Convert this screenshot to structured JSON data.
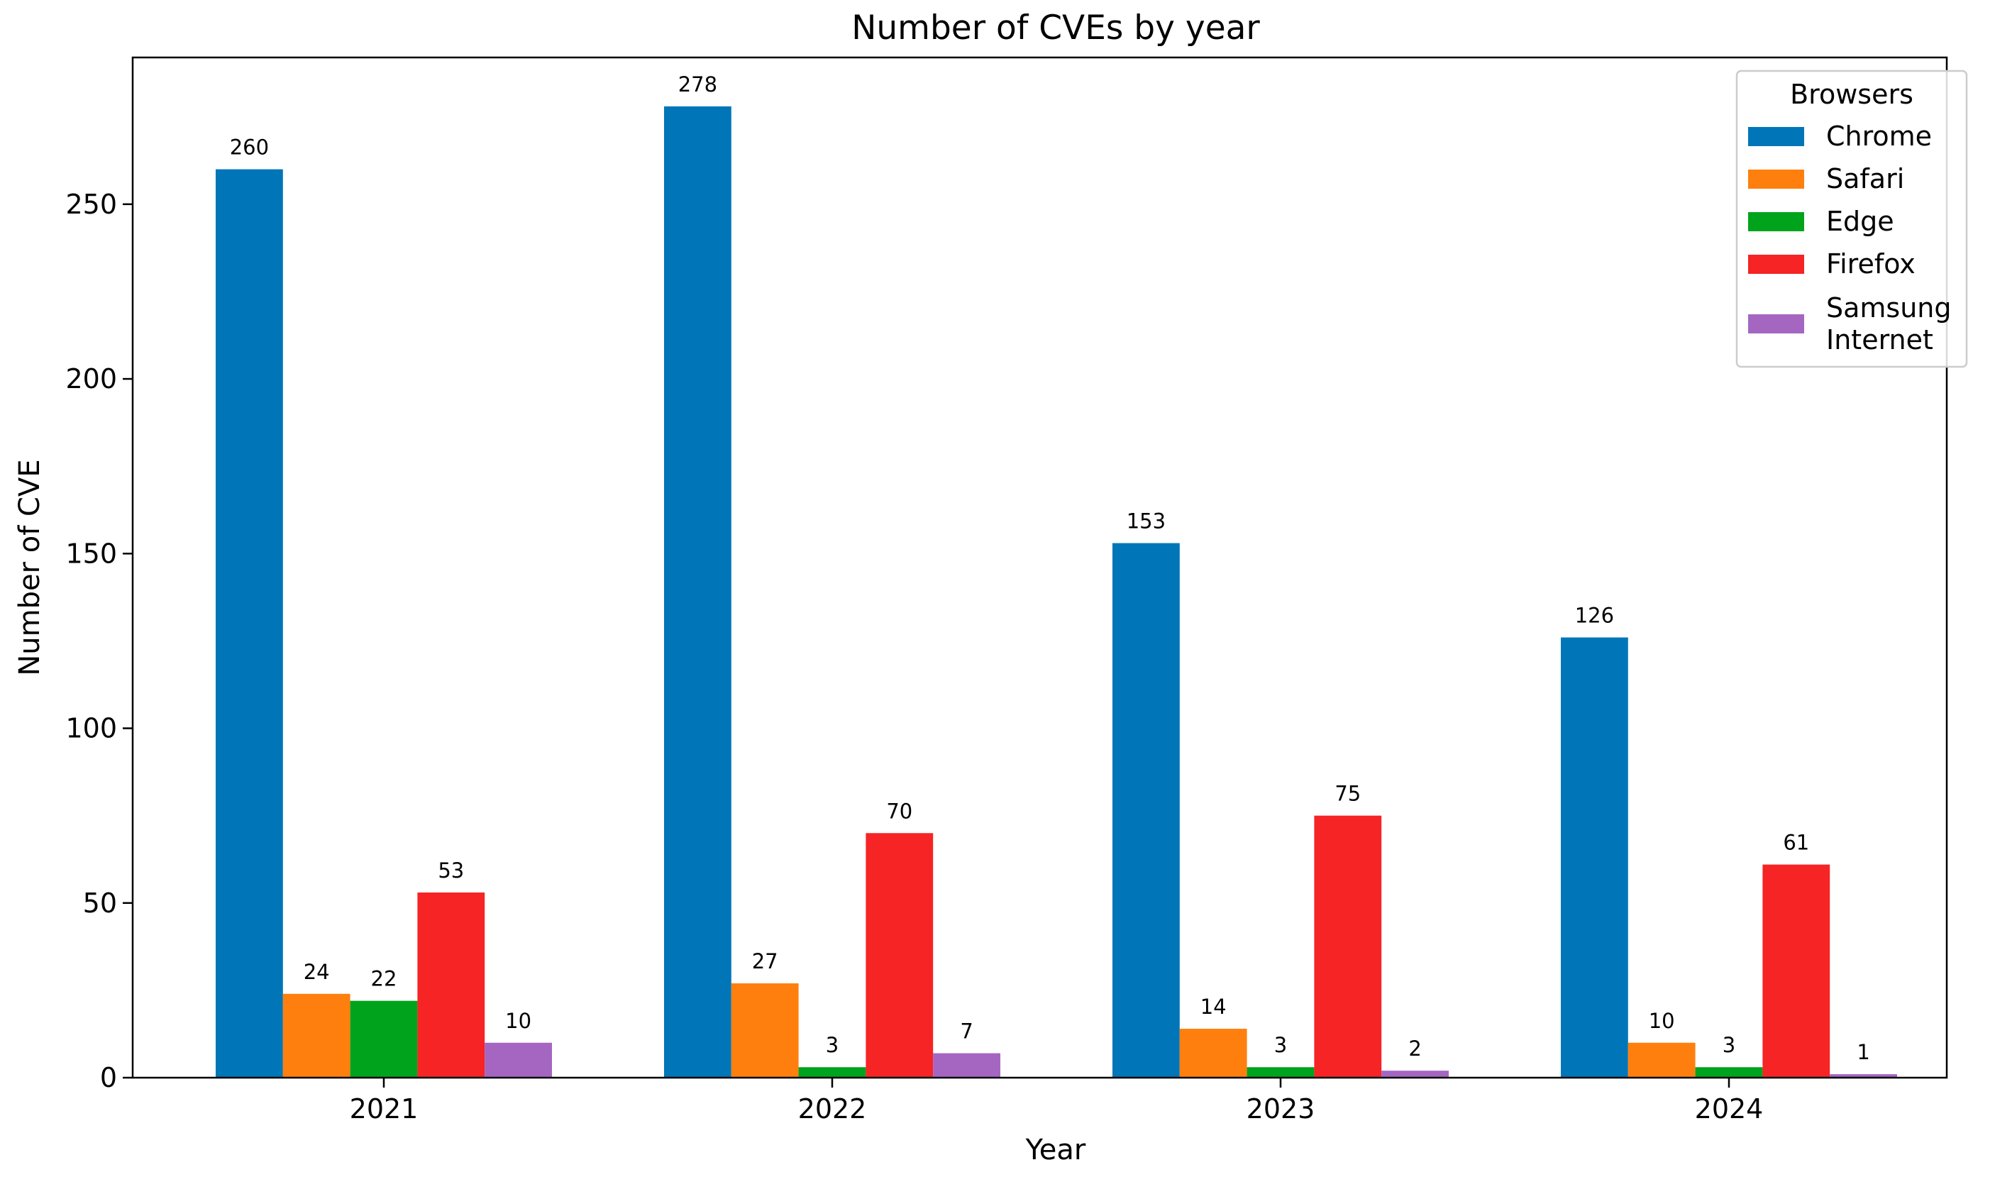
{
  "chart_data": {
    "type": "bar",
    "title": "Number of CVEs by year",
    "xlabel": "Year",
    "ylabel": "Number of CVE",
    "categories": [
      "2021",
      "2022",
      "2023",
      "2024"
    ],
    "ylim": [
      0,
      292
    ],
    "yticks": [
      "0",
      "50",
      "100",
      "150",
      "200",
      "250"
    ],
    "grid": false,
    "legend": {
      "title": "Browsers",
      "placement": "top-right"
    },
    "series": [
      {
        "name": "Chrome",
        "label_lines": [
          "Chrome"
        ],
        "color": "#0076b8",
        "values": [
          260,
          278,
          153,
          126
        ]
      },
      {
        "name": "Safari",
        "label_lines": [
          "Safari"
        ],
        "color": "#ff7f0e",
        "values": [
          24,
          27,
          14,
          10
        ]
      },
      {
        "name": "Edge",
        "label_lines": [
          "Edge"
        ],
        "color": "#00a31c",
        "values": [
          22,
          3,
          3,
          3
        ]
      },
      {
        "name": "Firefox",
        "label_lines": [
          "Firefox"
        ],
        "color": "#f62424",
        "values": [
          53,
          70,
          75,
          61
        ]
      },
      {
        "name": "Samsung Internet",
        "label_lines": [
          "Samsung",
          "Internet"
        ],
        "color": "#a566c2",
        "values": [
          10,
          7,
          2,
          1
        ]
      }
    ]
  }
}
